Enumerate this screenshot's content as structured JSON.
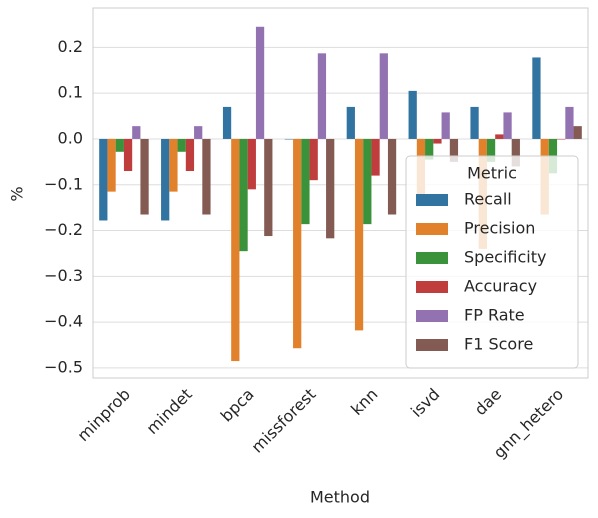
{
  "chart_data": {
    "type": "bar",
    "xlabel": "Method",
    "ylabel": "%",
    "categories": [
      "minprob",
      "mindet",
      "bpca",
      "missforest",
      "knn",
      "isvd",
      "dae",
      "gnn_hetero"
    ],
    "series": [
      {
        "name": "Recall",
        "color": "#3274a1",
        "values": [
          -0.178,
          -0.178,
          0.07,
          0.0,
          0.07,
          0.105,
          0.07,
          0.178
        ]
      },
      {
        "name": "Precision",
        "color": "#e1812c",
        "values": [
          -0.115,
          -0.115,
          -0.485,
          -0.457,
          -0.418,
          -0.14,
          -0.24,
          -0.165
        ]
      },
      {
        "name": "Specificity",
        "color": "#3a923a",
        "values": [
          -0.028,
          -0.028,
          -0.245,
          -0.186,
          -0.186,
          -0.045,
          -0.05,
          -0.075
        ]
      },
      {
        "name": "Accuracy",
        "color": "#c03d3e",
        "values": [
          -0.07,
          -0.07,
          -0.11,
          -0.09,
          -0.08,
          -0.01,
          0.01,
          0.0
        ]
      },
      {
        "name": "FP Rate",
        "color": "#9372b2",
        "values": [
          0.028,
          0.028,
          0.245,
          0.187,
          0.187,
          0.058,
          0.058,
          0.07
        ]
      },
      {
        "name": "F1 Score",
        "color": "#845b53",
        "values": [
          -0.165,
          -0.165,
          -0.212,
          -0.217,
          -0.165,
          -0.05,
          -0.06,
          0.028
        ]
      }
    ],
    "ylim": [
      -0.522,
      0.286
    ],
    "yticks": [
      0.2,
      0.1,
      {
        "value": 0.0,
        "label": "0.0"
      },
      {
        "value": -0.1,
        "label": "−0.1"
      },
      {
        "value": -0.2,
        "label": "−0.2"
      },
      {
        "value": -0.3,
        "label": "−0.3"
      },
      {
        "value": -0.4,
        "label": "−0.4"
      },
      {
        "value": -0.5,
        "label": "−0.5"
      }
    ],
    "grid": true,
    "legend": {
      "title": "Metric",
      "position": "lower right"
    }
  }
}
